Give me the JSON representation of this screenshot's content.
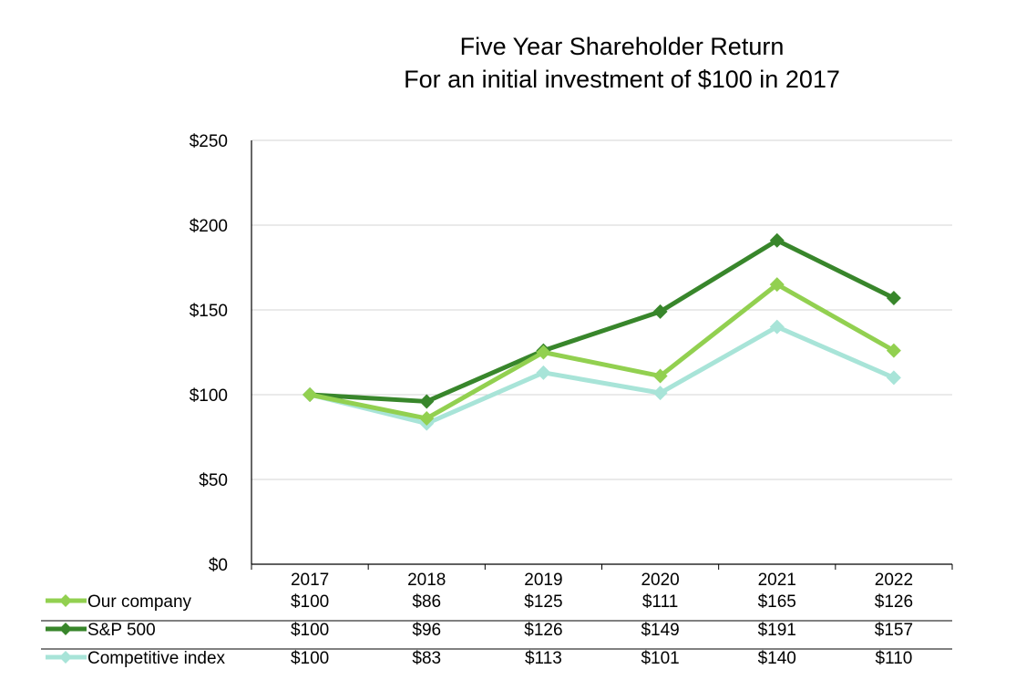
{
  "chart_data": {
    "type": "line",
    "title": "Five Year Shareholder Return",
    "subtitle": "For an initial investment of $100 in 2017",
    "x": [
      "2017",
      "2018",
      "2019",
      "2020",
      "2021",
      "2022"
    ],
    "ylim": [
      0,
      250
    ],
    "yticks": [
      "$0",
      "$50",
      "$100",
      "$150",
      "$200",
      "$250"
    ],
    "ytick_values": [
      0,
      50,
      100,
      150,
      200,
      250
    ],
    "grid": true,
    "legend": "data-table-below",
    "series": [
      {
        "name": "Our company",
        "color": "#92d050",
        "values": [
          100,
          86,
          125,
          111,
          165,
          126
        ],
        "labels": [
          "$100",
          "$86",
          "$125",
          "$111",
          "$165",
          "$126"
        ]
      },
      {
        "name": "S&P 500",
        "color": "#38862b",
        "values": [
          100,
          96,
          126,
          149,
          191,
          157
        ],
        "labels": [
          "$100",
          "$96",
          "$126",
          "$149",
          "$191",
          "$157"
        ]
      },
      {
        "name": "Competitive index",
        "color": "#a8e4d8",
        "values": [
          100,
          83,
          113,
          101,
          140,
          110
        ],
        "labels": [
          "$100",
          "$83",
          "$113",
          "$101",
          "$140",
          "$110"
        ]
      }
    ]
  }
}
